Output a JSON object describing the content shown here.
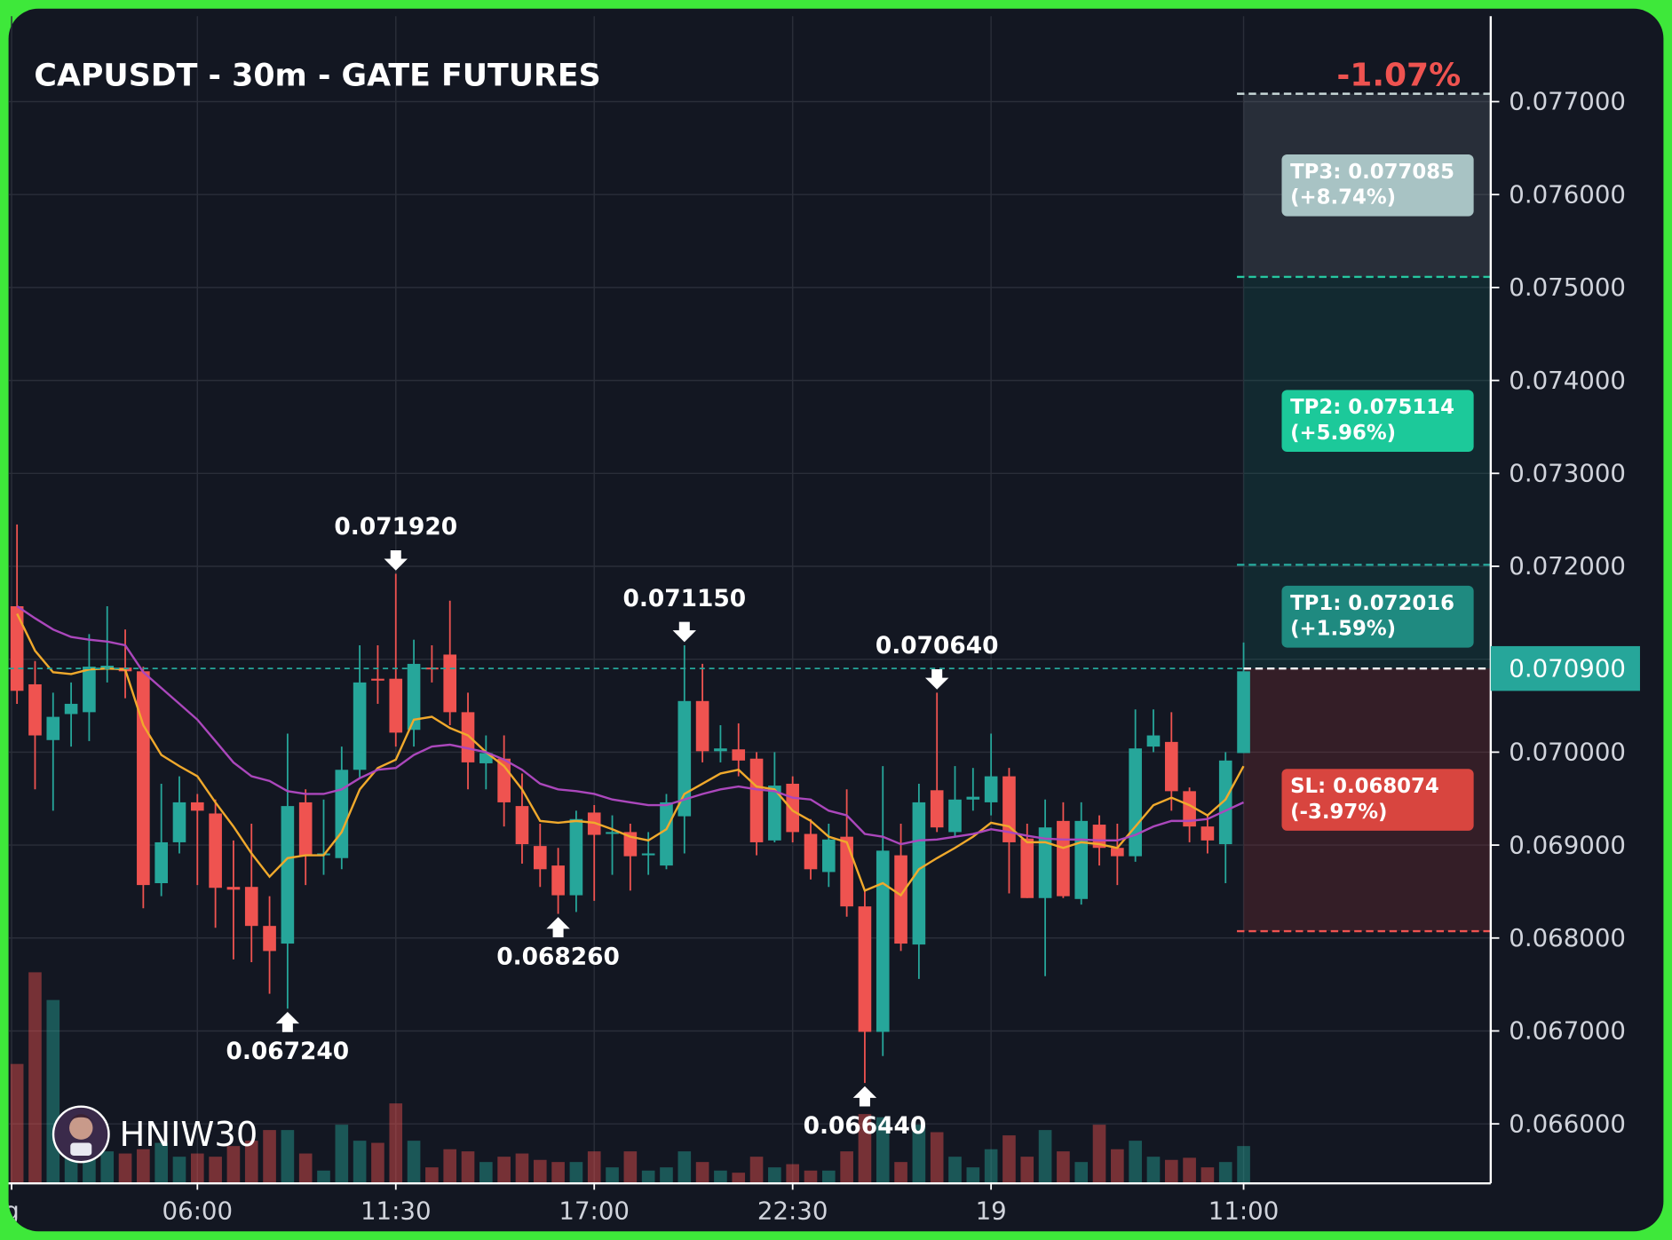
{
  "chart_data": {
    "type": "candlestick",
    "title": "CAPUSDT - 30m - GATE FUTURES",
    "change": "-1.07%",
    "watermark": "HNIW30",
    "up_color": "#26a69a",
    "down_color": "#ef5350",
    "grid": true,
    "xlim": [
      -0.47,
      81.7
    ],
    "ylim": [
      0.06536,
      0.07792
    ],
    "volume_ylim": [
      0,
      200
    ],
    "yticks": [
      {
        "value": 0.066,
        "label": "0.066000"
      },
      {
        "value": 0.067,
        "label": "0.067000"
      },
      {
        "value": 0.068,
        "label": "0.068000"
      },
      {
        "value": 0.069,
        "label": "0.069000"
      },
      {
        "value": 0.07,
        "label": "0.070000"
      },
      {
        "value": 0.071,
        "label": "0.071000"
      },
      {
        "value": 0.072,
        "label": "0.072000"
      },
      {
        "value": 0.073,
        "label": "0.073000"
      },
      {
        "value": 0.074,
        "label": "0.074000"
      },
      {
        "value": 0.075,
        "label": "0.075000"
      },
      {
        "value": 0.076,
        "label": "0.076000"
      },
      {
        "value": 0.077,
        "label": "0.077000"
      }
    ],
    "xticks": [
      {
        "value": -0.3,
        "label": "g"
      },
      {
        "value": 10,
        "label": "06:00"
      },
      {
        "value": 21,
        "label": "11:30"
      },
      {
        "value": 32,
        "label": "17:00"
      },
      {
        "value": 43,
        "label": "22:30"
      },
      {
        "value": 54,
        "label": "19"
      },
      {
        "value": 68,
        "label": "11:00"
      }
    ],
    "open": [
      0.07157,
      0.07073,
      0.07013,
      0.07041,
      0.07043,
      0.0709,
      0.07091,
      0.07087,
      0.06859,
      0.06903,
      0.06946,
      0.06934,
      0.06855,
      0.06855,
      0.06813,
      0.06794,
      0.06946,
      0.06889,
      0.06886,
      0.06981,
      0.07079,
      0.07079,
      0.07024,
      0.07091,
      0.07105,
      0.07043,
      0.06988,
      0.06993,
      0.06942,
      0.06899,
      0.06878,
      0.06846,
      0.06935,
      0.06912,
      0.06914,
      0.06889,
      0.06878,
      0.06931,
      0.07055,
      0.07001,
      0.07003,
      0.06993,
      0.06905,
      0.06966,
      0.06912,
      0.06871,
      0.06909,
      0.06834,
      0.06699,
      0.06889,
      0.06793,
      0.06959,
      0.06914,
      0.06949,
      0.06946,
      0.06974,
      0.06907,
      0.06843,
      0.06926,
      0.06842,
      0.06922,
      0.06897,
      0.06888,
      0.07006,
      0.07011,
      0.06958,
      0.0692,
      0.06901,
      0.06999
    ],
    "high": [
      0.07245,
      0.07098,
      0.07064,
      0.07075,
      0.07127,
      0.07157,
      0.07132,
      0.07092,
      0.06966,
      0.06974,
      0.06955,
      0.06949,
      0.06905,
      0.06923,
      0.06845,
      0.0702,
      0.0696,
      0.06949,
      0.07006,
      0.07115,
      0.07115,
      0.07192,
      0.07121,
      0.07115,
      0.07163,
      0.07064,
      0.07018,
      0.07018,
      0.06977,
      0.06923,
      0.06897,
      0.06937,
      0.06943,
      0.06932,
      0.06923,
      0.06914,
      0.06955,
      0.07115,
      0.07095,
      0.07029,
      0.07031,
      0.07,
      0.07,
      0.06974,
      0.06928,
      0.06923,
      0.0696,
      0.06851,
      0.06985,
      0.06923,
      0.06966,
      0.07064,
      0.06985,
      0.06983,
      0.0702,
      0.06983,
      0.06923,
      0.06949,
      0.06946,
      0.06946,
      0.06932,
      0.06923,
      0.07046,
      0.07046,
      0.07043,
      0.06962,
      0.06932,
      0.07,
      0.07118
    ],
    "low": [
      0.07052,
      0.0696,
      0.06937,
      0.07006,
      0.07012,
      0.07075,
      0.07058,
      0.06832,
      0.06845,
      0.06891,
      0.06857,
      0.06811,
      0.06777,
      0.06774,
      0.0674,
      0.06724,
      0.06857,
      0.06868,
      0.06874,
      0.06972,
      0.07052,
      0.07006,
      0.07006,
      0.07075,
      0.07029,
      0.0696,
      0.0696,
      0.0692,
      0.0688,
      0.06855,
      0.06826,
      0.06828,
      0.0684,
      0.06868,
      0.06851,
      0.06868,
      0.06874,
      0.06891,
      0.06989,
      0.06989,
      0.06974,
      0.06889,
      0.06903,
      0.06903,
      0.06863,
      0.06855,
      0.06823,
      0.06644,
      0.06673,
      0.06786,
      0.06756,
      0.06914,
      0.06909,
      0.06937,
      0.06932,
      0.06848,
      0.06843,
      0.06759,
      0.06843,
      0.06836,
      0.06878,
      0.06857,
      0.06882,
      0.07,
      0.06937,
      0.06903,
      0.06891,
      0.06859,
      0.06999
    ],
    "close": [
      0.07066,
      0.07018,
      0.07038,
      0.07052,
      0.07092,
      0.07093,
      0.07087,
      0.06857,
      0.06903,
      0.06946,
      0.06937,
      0.06854,
      0.06852,
      0.06813,
      0.06786,
      0.06942,
      0.06889,
      0.06891,
      0.06981,
      0.07075,
      0.07077,
      0.07021,
      0.07095,
      0.07089,
      0.07043,
      0.06989,
      0.06999,
      0.06946,
      0.06901,
      0.06874,
      0.06846,
      0.06928,
      0.06911,
      0.06914,
      0.06888,
      0.06891,
      0.06946,
      0.07055,
      0.07001,
      0.07004,
      0.06991,
      0.06903,
      0.06964,
      0.06914,
      0.06874,
      0.06906,
      0.06834,
      0.06699,
      0.06894,
      0.06794,
      0.06946,
      0.06919,
      0.06949,
      0.06952,
      0.06974,
      0.06903,
      0.06843,
      0.06919,
      0.06845,
      0.06926,
      0.06897,
      0.06888,
      0.07004,
      0.07018,
      0.06958,
      0.0692,
      0.06905,
      0.06991,
      0.07087
    ],
    "volume": [
      112,
      198,
      172,
      40,
      45,
      30,
      28,
      32,
      38,
      25,
      28,
      25,
      35,
      40,
      50,
      50,
      28,
      12,
      55,
      40,
      38,
      75,
      40,
      15,
      32,
      30,
      20,
      25,
      28,
      22,
      20,
      20,
      30,
      15,
      30,
      12,
      15,
      30,
      20,
      12,
      10,
      25,
      15,
      18,
      12,
      12,
      30,
      65,
      62,
      20,
      55,
      48,
      25,
      15,
      32,
      45,
      25,
      50,
      30,
      20,
      55,
      32,
      40,
      25,
      22,
      24,
      15,
      20,
      35
    ],
    "ma_lines": [
      {
        "color": "#f0a92c",
        "values": [
          0.07149,
          0.07109,
          0.07086,
          0.07084,
          0.07089,
          0.0709,
          0.07089,
          0.07029,
          0.06997,
          0.06985,
          0.06974,
          0.06946,
          0.0692,
          0.06891,
          0.06866,
          0.06886,
          0.06889,
          0.06889,
          0.06914,
          0.0696,
          0.06983,
          0.06992,
          0.07035,
          0.07038,
          0.07026,
          0.07018,
          0.07,
          0.06985,
          0.0696,
          0.06926,
          0.06924,
          0.06926,
          0.06924,
          0.06917,
          0.06909,
          0.06905,
          0.06917,
          0.06955,
          0.06966,
          0.06977,
          0.06981,
          0.06963,
          0.0696,
          0.06937,
          0.06926,
          0.06909,
          0.06903,
          0.06851,
          0.06859,
          0.06846,
          0.06874,
          0.06886,
          0.06897,
          0.06909,
          0.06924,
          0.0692,
          0.06903,
          0.06903,
          0.06897,
          0.06903,
          0.06901,
          0.06897,
          0.0692,
          0.06943,
          0.06951,
          0.06943,
          0.06932,
          0.06949,
          0.06985
        ]
      },
      {
        "color": "#ab47bc",
        "values": [
          0.07157,
          0.07144,
          0.07132,
          0.07124,
          0.07121,
          0.07119,
          0.07115,
          0.07086,
          0.07069,
          0.07052,
          0.07035,
          0.07012,
          0.06989,
          0.06974,
          0.06969,
          0.06958,
          0.06955,
          0.06955,
          0.0696,
          0.06972,
          0.06981,
          0.06983,
          0.06997,
          0.07006,
          0.07008,
          0.07004,
          0.07,
          0.06992,
          0.06981,
          0.06966,
          0.0696,
          0.06958,
          0.06955,
          0.06949,
          0.06946,
          0.06943,
          0.06943,
          0.06949,
          0.06955,
          0.0696,
          0.06963,
          0.0696,
          0.06958,
          0.06951,
          0.06949,
          0.06937,
          0.06932,
          0.06912,
          0.06909,
          0.06901,
          0.06905,
          0.06906,
          0.06909,
          0.06912,
          0.06917,
          0.06914,
          0.0691,
          0.06907,
          0.06906,
          0.06906,
          0.06905,
          0.06905,
          0.06911,
          0.0692,
          0.06926,
          0.06926,
          0.06928,
          0.06937,
          0.06946
        ]
      }
    ],
    "annotations": [
      {
        "index": 21,
        "value": 0.07192,
        "label": "0.071920",
        "position": "above"
      },
      {
        "index": 37,
        "value": 0.07115,
        "label": "0.071150",
        "position": "above"
      },
      {
        "index": 51,
        "value": 0.07064,
        "label": "0.070640",
        "position": "above"
      },
      {
        "index": 15,
        "value": 0.06724,
        "label": "0.067240",
        "position": "below"
      },
      {
        "index": 30,
        "value": 0.06826,
        "label": "0.068260",
        "position": "below"
      },
      {
        "index": 47,
        "value": 0.06644,
        "label": "0.066440",
        "position": "below"
      }
    ],
    "entry": {
      "value": 0.0709,
      "label": "0.070900",
      "color": "#26a69a"
    },
    "levels": [
      {
        "label": "TP3: 0.077085",
        "change": "(+8.74%)",
        "value": 0.077085,
        "color": "#a8c3c4",
        "line_color": "#c8d8d8",
        "zone_color": "rgba(120,130,140,0.22)"
      },
      {
        "label": "TP2: 0.075114",
        "change": "(+5.96%)",
        "value": 0.075114,
        "color": "#1cc99a",
        "line_color": "#26c6a0",
        "zone_color": "rgba(20,110,100,0.22)"
      },
      {
        "label": "TP1: 0.072016",
        "change": "(+1.59%)",
        "value": 0.072016,
        "color": "#1f8a80",
        "line_color": "#26a69a",
        "zone_color": "rgba(20,110,100,0.22)"
      },
      {
        "label": "SL: 0.068074",
        "change": "(-3.97%)",
        "value": 0.068074,
        "color": "#d8453f",
        "line_color": "#ef5350",
        "zone_color": "rgba(150,50,55,0.25)"
      }
    ]
  }
}
